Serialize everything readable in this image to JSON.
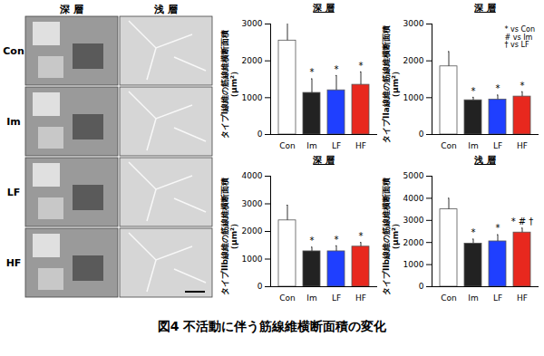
{
  "micrographs": {
    "columns": [
      "深 層",
      "浅 層"
    ],
    "rows": [
      "Con",
      "Im",
      "LF",
      "HF"
    ]
  },
  "caption": "図4 不活動に伴う筋線維横断面積の変化",
  "chart_data": [
    {
      "type": "bar",
      "title": "深 層",
      "y_label": "タイプI線維の筋線維横断面積（μm²）",
      "categories": [
        "Con",
        "Im",
        "LF",
        "HF"
      ],
      "values": [
        2550,
        1130,
        1200,
        1350
      ],
      "errors": [
        500,
        380,
        400,
        350
      ],
      "significance": [
        null,
        "*",
        "*",
        "*"
      ],
      "colors": [
        "#ffffff",
        "#222222",
        "#1f3fff",
        "#e8281e"
      ],
      "ylim": [
        0,
        3000
      ],
      "yticks": [
        0,
        1000,
        2000,
        3000
      ]
    },
    {
      "type": "bar",
      "title": "深 層",
      "y_label": "タイプIIa線維の筋線維横断面積（μm²）",
      "categories": [
        "Con",
        "Im",
        "LF",
        "HF"
      ],
      "values": [
        1850,
        930,
        950,
        1030
      ],
      "errors": [
        400,
        80,
        120,
        130
      ],
      "significance": [
        null,
        "*",
        "*",
        "*"
      ],
      "colors": [
        "#ffffff",
        "#222222",
        "#1f3fff",
        "#e8281e"
      ],
      "ylim": [
        0,
        3000
      ],
      "yticks": [
        0,
        1000,
        2000,
        3000
      ],
      "annotations": [
        "* vs Con",
        "# vs Im",
        "† vs LF"
      ]
    },
    {
      "type": "bar",
      "title": "深 層",
      "y_label": "タイプIIb線維の筋線維横断面積（μm²）",
      "categories": [
        "Con",
        "Im",
        "LF",
        "HF"
      ],
      "values": [
        2400,
        1280,
        1280,
        1450
      ],
      "errors": [
        550,
        150,
        200,
        150
      ],
      "significance": [
        null,
        "*",
        "*",
        "*"
      ],
      "colors": [
        "#ffffff",
        "#222222",
        "#1f3fff",
        "#e8281e"
      ],
      "ylim": [
        0,
        4000
      ],
      "yticks": [
        0,
        1000,
        2000,
        3000,
        4000
      ]
    },
    {
      "type": "bar",
      "title": "浅 層",
      "y_label": "タイプIIb線維の筋線維横断面積（μm²）",
      "categories": [
        "Con",
        "Im",
        "LF",
        "HF"
      ],
      "values": [
        3500,
        1950,
        2050,
        2450
      ],
      "errors": [
        500,
        200,
        300,
        200
      ],
      "significance": [
        null,
        "*",
        "*",
        "* # †"
      ],
      "colors": [
        "#ffffff",
        "#222222",
        "#1f3fff",
        "#e8281e"
      ],
      "ylim": [
        0,
        5000
      ],
      "yticks": [
        0,
        1000,
        2000,
        3000,
        4000,
        5000
      ]
    }
  ]
}
